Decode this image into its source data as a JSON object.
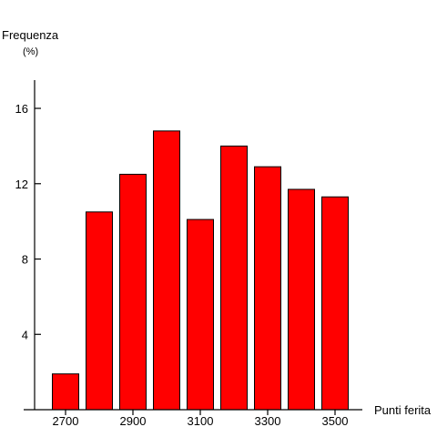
{
  "colors": {
    "bar": "#ff0000",
    "bar_edge": "#000000",
    "axis": "#000000",
    "background": "#ffffff"
  },
  "chart_data": {
    "type": "bar",
    "ylabel": "Frequenza",
    "ylabel_unit": "(%)",
    "xlabel": "Punti ferita",
    "x": [
      2700,
      2800,
      2900,
      3000,
      3100,
      3200,
      3300,
      3400,
      3500
    ],
    "values": [
      1.9,
      10.5,
      12.5,
      14.8,
      10.1,
      14.0,
      12.9,
      11.7,
      11.3
    ],
    "ylim": [
      0,
      17.5
    ],
    "yticks": [
      4,
      8,
      12,
      16
    ],
    "xticks": [
      2700,
      2900,
      3100,
      3300,
      3500
    ],
    "xtick_labels": [
      "2700",
      "2900",
      "3100",
      "3300",
      "3500"
    ],
    "ytick_labels": [
      "4",
      "8",
      "12",
      "16"
    ],
    "grid": false,
    "legend": "none"
  }
}
